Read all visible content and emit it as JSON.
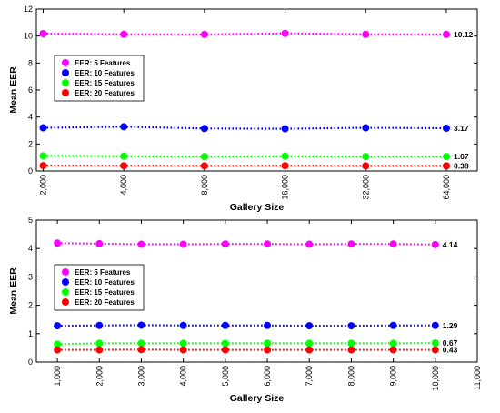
{
  "chart_data": [
    {
      "type": "line",
      "xlabel": "Gallery Size",
      "ylabel": "Mean EER",
      "ylim": [
        0,
        12
      ],
      "yticks": [
        "0",
        "2",
        "4",
        "6",
        "8",
        "10",
        "12"
      ],
      "xticks": [
        2000,
        4000,
        8000,
        16000,
        32000,
        64000
      ],
      "xtick_labels": [
        "2,000",
        "4,000",
        "8,000",
        "16,000",
        "32,000",
        "64,000"
      ],
      "x_scale": "log",
      "grid": false,
      "legend_position": "upper-left",
      "line_style": "dotted",
      "x": [
        2000,
        4000,
        8000,
        16000,
        32000,
        64000
      ],
      "series": [
        {
          "name": "EER: 5 Features",
          "color": "#ff00ff",
          "values": [
            10.18,
            10.13,
            10.12,
            10.2,
            10.13,
            10.12
          ],
          "end_label": "10.12"
        },
        {
          "name": "EER: 10 Features",
          "color": "#0000ff",
          "values": [
            3.2,
            3.28,
            3.15,
            3.13,
            3.2,
            3.17
          ],
          "end_label": "3.17"
        },
        {
          "name": "EER: 15 Features",
          "color": "#00ff00",
          "values": [
            1.12,
            1.1,
            1.07,
            1.1,
            1.07,
            1.07
          ],
          "end_label": "1.07"
        },
        {
          "name": "EER: 20 Features",
          "color": "#ff0000",
          "values": [
            0.4,
            0.39,
            0.38,
            0.39,
            0.38,
            0.38
          ],
          "end_label": "0.38"
        }
      ]
    },
    {
      "type": "line",
      "xlabel": "Gallery Size",
      "ylabel": "Mean EER",
      "ylim": [
        0,
        5
      ],
      "xlim": [
        500,
        11000
      ],
      "yticks": [
        "0",
        "1",
        "2",
        "3",
        "4",
        "5"
      ],
      "xticks": [
        1000,
        2000,
        3000,
        4000,
        5000,
        6000,
        7000,
        8000,
        9000,
        10000,
        11000
      ],
      "xtick_labels": [
        "1,000",
        "2,000",
        "3,000",
        "4,000",
        "5,000",
        "6,000",
        "7,000",
        "8,000",
        "9,000",
        "10,000",
        "11,000"
      ],
      "x_scale": "linear",
      "grid": false,
      "legend_position": "upper-left",
      "line_style": "dotted",
      "x": [
        1000,
        2000,
        3000,
        4000,
        5000,
        6000,
        7000,
        8000,
        9000,
        10000
      ],
      "series": [
        {
          "name": "EER: 5 Features",
          "color": "#ff00ff",
          "values": [
            4.19,
            4.17,
            4.15,
            4.15,
            4.16,
            4.16,
            4.15,
            4.16,
            4.16,
            4.14
          ],
          "end_label": "4.14"
        },
        {
          "name": "EER: 10 Features",
          "color": "#0000ff",
          "values": [
            1.28,
            1.29,
            1.3,
            1.29,
            1.29,
            1.29,
            1.28,
            1.28,
            1.29,
            1.29
          ],
          "end_label": "1.29"
        },
        {
          "name": "EER: 15 Features",
          "color": "#00ff00",
          "values": [
            0.63,
            0.66,
            0.66,
            0.66,
            0.66,
            0.66,
            0.66,
            0.66,
            0.66,
            0.67
          ],
          "end_label": "0.67"
        },
        {
          "name": "EER: 20 Features",
          "color": "#ff0000",
          "values": [
            0.43,
            0.43,
            0.44,
            0.43,
            0.43,
            0.43,
            0.43,
            0.43,
            0.43,
            0.43
          ],
          "end_label": "0.43"
        }
      ]
    }
  ]
}
